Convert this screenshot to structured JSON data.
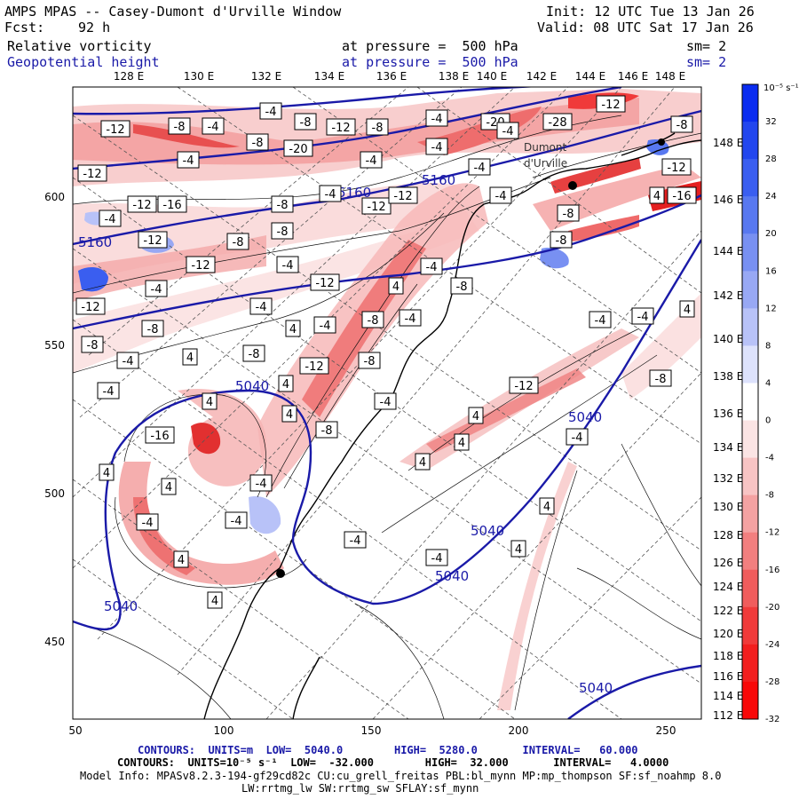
{
  "header": {
    "title": "AMPS MPAS -- Casey-Dumont d'Urville Window",
    "init": "Init: 12 UTC Tue 13 Jan 26",
    "fcst_label": "Fcst:",
    "fcst_value": "92 h",
    "valid": "Valid: 08 UTC Sat 17 Jan 26",
    "field1": {
      "name": "Relative vorticity",
      "pressure": "at pressure =  500 hPa",
      "sm": "sm= 2"
    },
    "field2": {
      "name": "Geopotential height",
      "pressure": "at pressure =  500 hPa",
      "sm": "sm= 2"
    }
  },
  "colors": {
    "geopotential": "#1a1aa8",
    "positive_max": "#0020ff",
    "negative_max": "#ff0000"
  },
  "map": {
    "x_ticks": [
      "50",
      "100",
      "150",
      "200",
      "250"
    ],
    "y_ticks": [
      "600",
      "550",
      "500",
      "450"
    ],
    "lon_labels": [
      "128 E",
      "130 E",
      "132 E",
      "134 E",
      "136 E",
      "138 E",
      "140 E",
      "142 E",
      "144 E",
      "146 E",
      "148 E"
    ],
    "lat_right_labels": [
      "148 E",
      "146 E",
      "144 E",
      "142 E",
      "140 E",
      "138 E",
      "136 E",
      "134 E",
      "132 E",
      "130 E",
      "128 E",
      "126 E",
      "124 E",
      "122 E",
      "120 E",
      "118 E",
      "116 E",
      "114 E",
      "112 E"
    ],
    "height_labels": [
      "5160",
      "5160",
      "5160",
      "5040",
      "5040",
      "5040",
      "5040",
      "5040",
      "5040"
    ],
    "place_labels": [
      "Dumont",
      "d'Urville"
    ],
    "vort_boxes": [
      "-8",
      "-4",
      "-12",
      "-4",
      "-8",
      "-12",
      "-8",
      "-4",
      "-20",
      "-28",
      "-12",
      "-8",
      "-20",
      "-4",
      "-4",
      "-8",
      "-12",
      "-4",
      "-4",
      "-12",
      "-4",
      "-12",
      "-16",
      "-4",
      "-12",
      "-12",
      "-4",
      "-8",
      "-8",
      "-4",
      "-8",
      "4",
      "-16",
      "-12",
      "-8",
      "-12",
      "-4",
      "-4",
      "-12",
      "4",
      "-4",
      "-8",
      "-12",
      "-4",
      "-4",
      "4",
      "-8",
      "-4",
      "-8",
      "-4",
      "-4",
      "4",
      "-8",
      "-8",
      "4",
      "-4",
      "-8",
      "-12",
      "-8",
      "-4",
      "4",
      "-12",
      "-8",
      "4",
      "4",
      "-4",
      "-8",
      "-16",
      "4",
      "4",
      "4",
      "-4",
      "4",
      "4",
      "-4",
      "-4",
      "-4",
      "-4",
      "-4",
      "4",
      "4",
      "4",
      "4"
    ]
  },
  "colorbar": {
    "unit": "10⁻⁵ s⁻¹",
    "labels": [
      "32",
      "28",
      "24",
      "20",
      "16",
      "12",
      "8",
      "4",
      "0",
      "-4",
      "-8",
      "-12",
      "-16",
      "-20",
      "-24",
      "-28",
      "-32"
    ],
    "colors": [
      "#0a2cf0",
      "#2246ee",
      "#3a5ef0",
      "#5878f0",
      "#7890f2",
      "#98a8f4",
      "#b8c2f8",
      "#dde2fc",
      "#ffffff",
      "#fbe4e4",
      "#f8c4c4",
      "#f4a2a2",
      "#f27f7f",
      "#f05c5c",
      "#f03a3a",
      "#f21e1e",
      "#f80808"
    ]
  },
  "footer": {
    "line1": "CONTOURS:  UNITS=m  LOW=  5040.0        HIGH=  5280.0       INTERVAL=   60.000",
    "line2": "CONTOURS:  UNITS=10⁻⁵ s⁻¹  LOW=  -32.000        HIGH=  32.000       INTERVAL=   4.0000",
    "line3": "Model Info: MPASv8.2.3-194-gf29cd82c CU:cu_grell_freitas PBL:bl_mynn MP:mp_thompson SF:sf_noahmp 8.0",
    "line4": "LW:rrtmg_lw SW:rrtmg_sw SFLAY:sf_mynn"
  }
}
